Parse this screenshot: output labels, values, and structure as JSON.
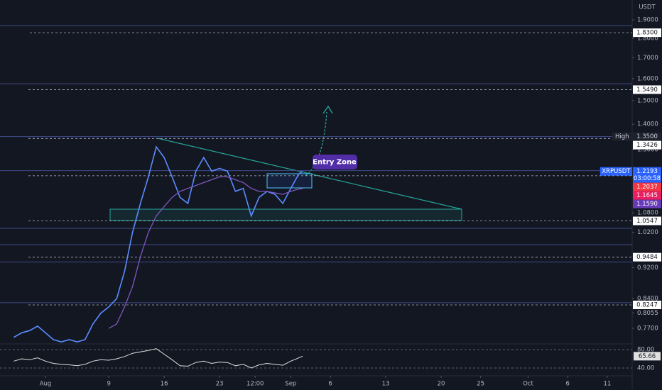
{
  "chart_data": {
    "type": "line",
    "log_scale": true,
    "currency": "USDT",
    "symbol": "XRPUSDT",
    "countdown": "03:00:58",
    "annotation": "Entry Zone",
    "xlim": [
      -5.75,
      74.15
    ],
    "ylim": [
      0.7357,
      2.014
    ],
    "x": [
      -4,
      -3,
      -2,
      -1,
      0,
      1,
      2,
      3,
      4,
      5,
      6,
      7,
      8,
      9,
      10,
      11,
      12,
      13,
      14,
      15,
      16,
      17,
      18,
      19,
      20,
      21,
      22,
      23,
      24,
      25,
      26,
      27,
      28,
      29,
      30,
      31,
      32,
      32.5
    ],
    "series": [
      {
        "color": "#5b8cff",
        "values": [
          0.75,
          0.76,
          0.765,
          0.775,
          0.76,
          0.745,
          0.74,
          0.745,
          0.74,
          0.745,
          0.78,
          0.805,
          0.82,
          0.84,
          0.91,
          1.02,
          1.11,
          1.2,
          1.31,
          1.27,
          1.2,
          1.13,
          1.11,
          1.22,
          1.27,
          1.22,
          1.23,
          1.22,
          1.15,
          1.16,
          1.07,
          1.13,
          1.15,
          1.14,
          1.11,
          1.16,
          1.21,
          1.2193
        ]
      },
      {
        "color": "#7e57c2",
        "values": [
          null,
          null,
          null,
          null,
          null,
          null,
          null,
          null,
          null,
          null,
          null,
          null,
          0.77,
          0.78,
          0.82,
          0.87,
          0.95,
          1.02,
          1.07,
          1.1,
          1.13,
          1.15,
          1.16,
          1.17,
          1.18,
          1.19,
          1.2,
          1.2,
          1.19,
          1.18,
          1.16,
          1.15,
          1.15,
          1.145,
          1.14,
          1.15,
          1.158,
          1.159
        ]
      }
    ],
    "xticks": [
      {
        "value": 0,
        "label": "Aug"
      },
      {
        "value": 8,
        "label": "9"
      },
      {
        "value": 15,
        "label": "16"
      },
      {
        "value": 22,
        "label": "23"
      },
      {
        "value": 26.5,
        "label": "12:00"
      },
      {
        "value": 31,
        "label": "Sep"
      },
      {
        "value": 36,
        "label": "6"
      },
      {
        "value": 43,
        "label": "13"
      },
      {
        "value": 50,
        "label": "20"
      },
      {
        "value": 55,
        "label": "25"
      },
      {
        "value": 61,
        "label": "Oct"
      },
      {
        "value": 66,
        "label": "6"
      },
      {
        "value": 71,
        "label": "11"
      }
    ],
    "yticks": [
      {
        "value": 1.9,
        "label": "1.9000"
      },
      {
        "value": 1.8,
        "label": "1.8000"
      },
      {
        "value": 1.7,
        "label": "1.7000"
      },
      {
        "value": 1.6,
        "label": "1.6000"
      },
      {
        "value": 1.5,
        "label": "1.5000"
      },
      {
        "value": 1.4,
        "label": "1.4000"
      },
      {
        "value": 1.3,
        "label": "1.3000"
      },
      {
        "value": 1.08,
        "label": "1.0800"
      },
      {
        "value": 1.02,
        "label": "1.0200"
      },
      {
        "value": 0.92,
        "label": "0.9200"
      },
      {
        "value": 0.84,
        "label": "0.8400"
      },
      {
        "value": 0.8055,
        "label": "0.8055"
      },
      {
        "value": 0.77,
        "label": "0.7700"
      }
    ],
    "levels_solid": [
      1.869,
      1.576,
      1.35,
      1.222,
      1.032,
      0.984,
      0.935,
      0.83
    ],
    "levels_dashed": [
      1.83,
      1.549,
      1.3426,
      1.2037,
      1.0547,
      0.9484,
      0.8247
    ],
    "price_labels": [
      {
        "value": 1.83,
        "label": "1.8300",
        "bg": "#ffffff",
        "fg": "#131722"
      },
      {
        "value": 1.549,
        "label": "1.5490",
        "bg": "#ffffff",
        "fg": "#131722"
      },
      {
        "value": 1.35,
        "label": "1.3500",
        "bg": "#1e222d",
        "fg": "#d1d4dc",
        "tag": "High"
      },
      {
        "value": 1.3426,
        "label": "1.3426",
        "bg": "#ffffff",
        "fg": "#131722"
      },
      {
        "value": 1.2193,
        "label": "1.2193",
        "bg": "#2962ff",
        "fg": "#ffffff",
        "tag": "XRPUSDT"
      },
      {
        "value": 1.2037,
        "label": "1.2037",
        "bg": "#f23645",
        "fg": "#ffffff"
      },
      {
        "value": 1.1645,
        "label": "1.1645",
        "bg": "#e91e63",
        "fg": "#ffffff"
      },
      {
        "value": 1.159,
        "label": "1.1590",
        "bg": "#673ab7",
        "fg": "#ffffff"
      },
      {
        "value": 1.0547,
        "label": "1.0547",
        "bg": "#ffffff",
        "fg": "#131722"
      },
      {
        "value": 0.9484,
        "label": "0.9484",
        "bg": "#ffffff",
        "fg": "#131722"
      },
      {
        "value": 0.8247,
        "label": "0.8247",
        "bg": "#ffffff",
        "fg": "#131722"
      }
    ],
    "rsi": {
      "color": "#e0e0e0",
      "ylim": [
        23.1,
        92.3
      ],
      "yticks": [
        {
          "value": 80,
          "label": "80.00"
        },
        {
          "value": 40,
          "label": "40.00"
        }
      ],
      "last_label": "65.66",
      "values": [
        55,
        60,
        58,
        62,
        55,
        50,
        48,
        47,
        45,
        48,
        55,
        58,
        57,
        60,
        65,
        72,
        75,
        78,
        82,
        70,
        58,
        45,
        44,
        52,
        55,
        50,
        53,
        52,
        45,
        48,
        40,
        47,
        50,
        48,
        46,
        55,
        62,
        65.66
      ]
    }
  }
}
